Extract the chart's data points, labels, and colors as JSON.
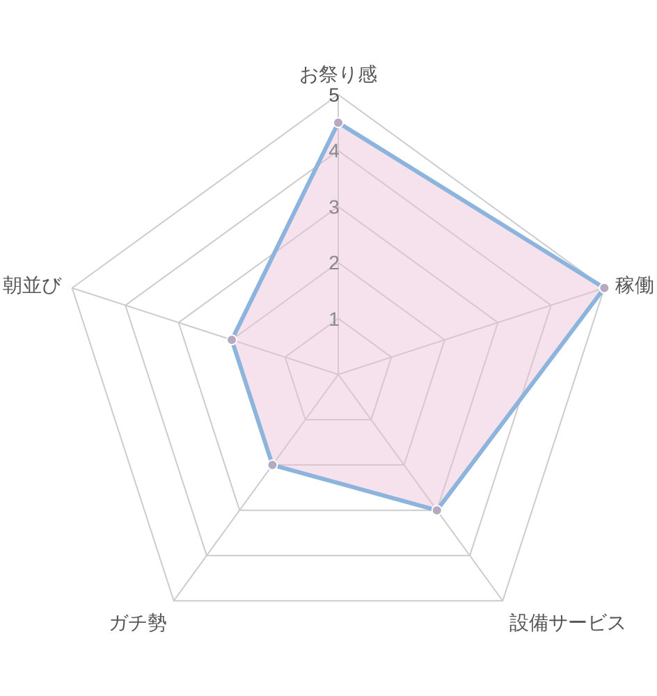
{
  "chart_data": {
    "type": "radar",
    "categories": [
      "お祭り感",
      "稼働",
      "設備サービス",
      "ガチ勢",
      "朝並び"
    ],
    "series": [
      {
        "color": "#8db4dd",
        "values": [
          4.5,
          5,
          3,
          2,
          2
        ]
      }
    ],
    "ylim": [
      0,
      5
    ],
    "yticks": [
      1,
      2,
      3,
      4,
      5
    ],
    "grid": true,
    "marker": "circle",
    "line_style": "solid"
  }
}
